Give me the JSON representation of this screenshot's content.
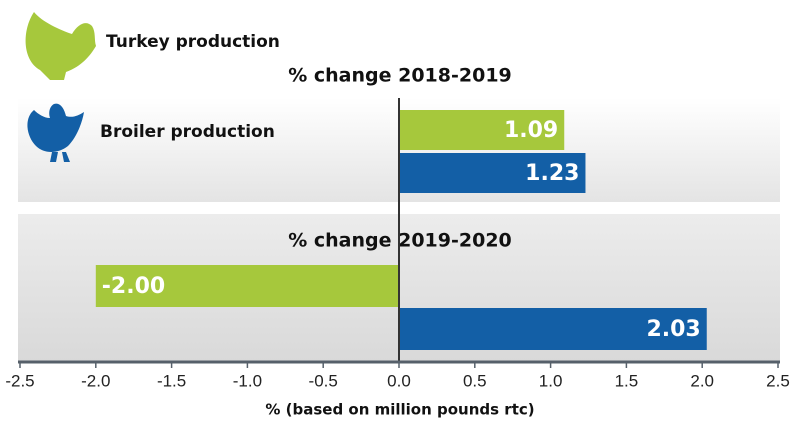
{
  "chart_data": {
    "type": "bar",
    "orientation": "horizontal",
    "groups": [
      "% change 2018-2019",
      "% change 2019-2020"
    ],
    "series": [
      {
        "name": "Turkey production",
        "color": "#a6c83c",
        "values": [
          1.09,
          -2.0
        ],
        "value_labels": [
          "1.09",
          "-2.00"
        ]
      },
      {
        "name": "Broiler production",
        "color": "#135fa6",
        "values": [
          1.23,
          2.03
        ]
      }
    ],
    "xlim": [
      -2.5,
      2.5
    ],
    "xticks": [
      -2.5,
      {
        "value": -2,
        "label": "-2.0"
      },
      -1.5,
      {
        "value": -1,
        "label": "-1.0"
      },
      -0.5,
      {
        "value": 0,
        "label": "0.0"
      },
      0.5,
      {
        "value": 1,
        "label": "1.0"
      },
      1.5,
      {
        "value": 2,
        "label": "2.0"
      },
      2.5
    ],
    "x_label": "% (based on million pounds rtc)"
  }
}
